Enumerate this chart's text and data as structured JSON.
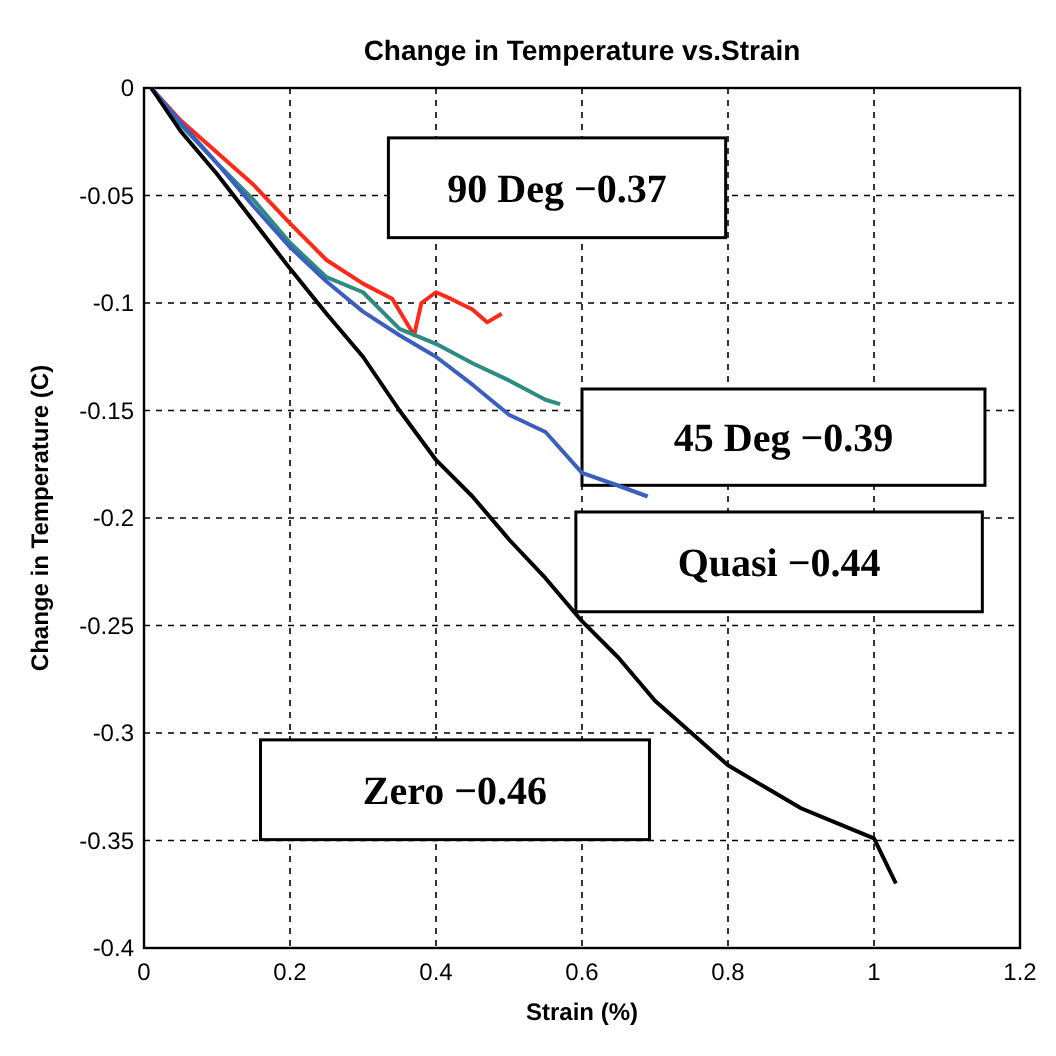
{
  "chart_data": {
    "type": "line",
    "title": "Change in Temperature vs.Strain",
    "xlabel": "Strain (%)",
    "ylabel": "Change in Temperature (C)",
    "xlim": [
      0,
      1.2
    ],
    "ylim": [
      -0.4,
      0
    ],
    "xticks": [
      0,
      0.2,
      0.4,
      0.6,
      0.8,
      1,
      1.2
    ],
    "yticks": [
      0,
      -0.05,
      -0.1,
      -0.15,
      -0.2,
      -0.25,
      -0.3,
      -0.35,
      -0.4
    ],
    "grid": true,
    "line_style": "solid",
    "marker": "none",
    "series": [
      {
        "color": "#ff2a1a",
        "x": [
          0.01,
          0.05,
          0.1,
          0.15,
          0.2,
          0.25,
          0.3,
          0.34,
          0.37,
          0.38,
          0.4,
          0.42,
          0.45,
          0.47,
          0.49
        ],
        "values": [
          0,
          -0.015,
          -0.03,
          -0.045,
          -0.063,
          -0.08,
          -0.091,
          -0.098,
          -0.115,
          -0.1,
          -0.095,
          -0.098,
          -0.103,
          -0.109,
          -0.105
        ]
      },
      {
        "color": "#2e8b80",
        "x": [
          0.01,
          0.05,
          0.1,
          0.15,
          0.2,
          0.25,
          0.3,
          0.35,
          0.4,
          0.45,
          0.5,
          0.55,
          0.57
        ],
        "values": [
          0,
          -0.017,
          -0.035,
          -0.052,
          -0.072,
          -0.088,
          -0.095,
          -0.112,
          -0.119,
          -0.128,
          -0.136,
          -0.145,
          -0.147
        ]
      },
      {
        "color": "#3a5fbf",
        "x": [
          0.01,
          0.05,
          0.1,
          0.15,
          0.2,
          0.25,
          0.3,
          0.35,
          0.4,
          0.45,
          0.5,
          0.55,
          0.6,
          0.65,
          0.69
        ],
        "values": [
          0,
          -0.016,
          -0.035,
          -0.055,
          -0.074,
          -0.09,
          -0.104,
          -0.115,
          -0.125,
          -0.138,
          -0.152,
          -0.16,
          -0.179,
          -0.185,
          -0.19
        ]
      },
      {
        "color": "#000000",
        "x": [
          0.01,
          0.05,
          0.1,
          0.15,
          0.2,
          0.25,
          0.3,
          0.35,
          0.4,
          0.45,
          0.5,
          0.55,
          0.6,
          0.65,
          0.7,
          0.75,
          0.8,
          0.85,
          0.9,
          0.95,
          1,
          1.03
        ],
        "values": [
          0,
          -0.02,
          -0.04,
          -0.062,
          -0.084,
          -0.105,
          -0.125,
          -0.15,
          -0.173,
          -0.19,
          -0.21,
          -0.228,
          -0.248,
          -0.265,
          -0.285,
          -0.3,
          -0.315,
          -0.325,
          -0.335,
          -0.342,
          -0.349,
          -0.37
        ]
      }
    ],
    "annotations": [
      "90 Deg −0.37",
      "45 Deg −0.39",
      "Quasi −0.44",
      "Zero −0.46"
    ]
  }
}
